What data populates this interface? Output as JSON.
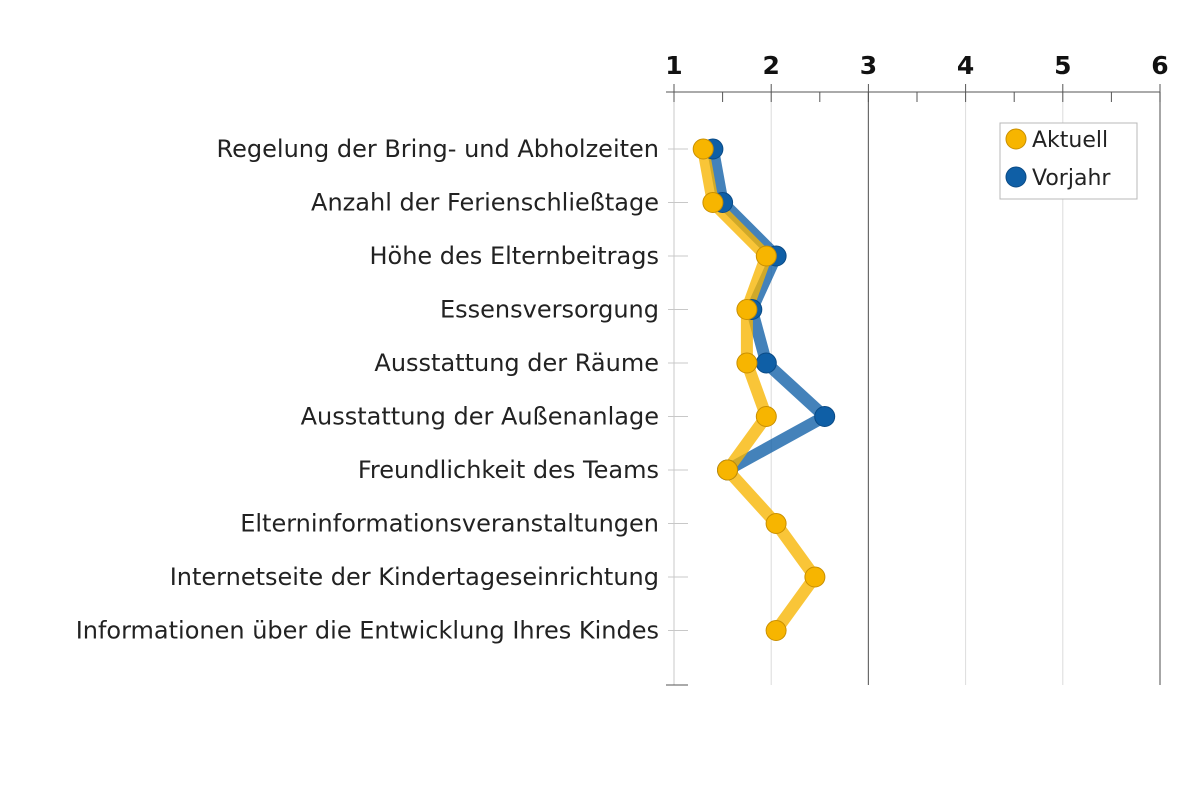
{
  "chart_data": {
    "type": "line",
    "orientation": "horizontal",
    "categories": [
      "Regelung der Bring- und Abholzeiten",
      "Anzahl der Ferienschließtage",
      "Höhe des Elternbeitrags",
      "Essensversorgung",
      "Ausstattung der Räume",
      "Ausstattung der Außenanlage",
      "Freundlichkeit des Teams",
      "Elterninformationsveranstaltungen",
      "Internetseite der Kindertageseinrichtung",
      "Informationen über die Entwicklung Ihres Kindes"
    ],
    "series": [
      {
        "name": "Vorjahr",
        "color": "#0f5fa6",
        "values": [
          1.4,
          1.5,
          2.05,
          1.8,
          1.95,
          2.55,
          1.55,
          null,
          null,
          null
        ]
      },
      {
        "name": "Aktuell",
        "color": "#f7b500",
        "values": [
          1.3,
          1.4,
          1.95,
          1.75,
          1.75,
          1.95,
          1.55,
          2.05,
          2.45,
          2.05
        ]
      }
    ],
    "xlim": [
      1,
      6
    ],
    "ticks": [
      "1",
      "2",
      "3",
      "4",
      "5",
      "6"
    ],
    "axis_position": "top",
    "legend_position": "top-right",
    "grid": true
  }
}
